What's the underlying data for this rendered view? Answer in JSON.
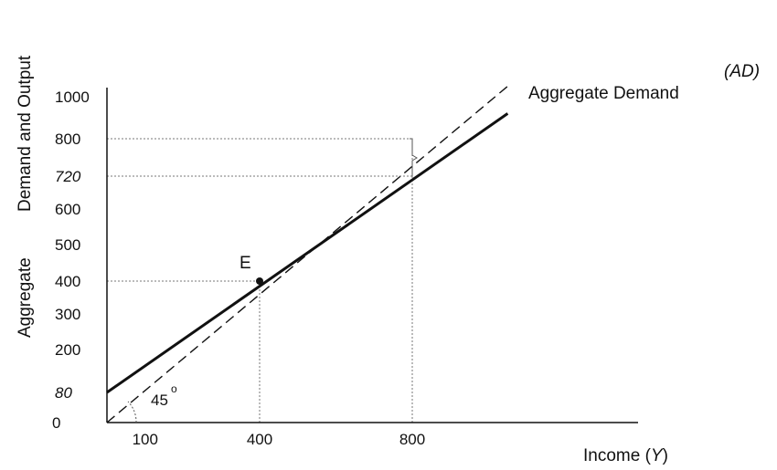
{
  "chart_data": {
    "type": "line",
    "title": "",
    "ylabel_left": "Aggregate",
    "ylabel_right": "Demand and Output",
    "xlabel_prefix": "Income (",
    "xlabel_var": "Y",
    "xlabel_suffix": ")",
    "x_ticks": [
      {
        "value": 100,
        "label": "100"
      },
      {
        "value": 400,
        "label": "400"
      },
      {
        "value": 800,
        "label": "800"
      }
    ],
    "y_ticks": [
      {
        "value": 0,
        "label": "0",
        "italic": false
      },
      {
        "value": 80,
        "label": "80",
        "italic": true
      },
      {
        "value": 200,
        "label": "200",
        "italic": false
      },
      {
        "value": 300,
        "label": "300",
        "italic": false
      },
      {
        "value": 400,
        "label": "400",
        "italic": false
      },
      {
        "value": 500,
        "label": "500",
        "italic": false
      },
      {
        "value": 600,
        "label": "600",
        "italic": false
      },
      {
        "value": 720,
        "label": "720",
        "italic": true
      },
      {
        "value": 800,
        "label": "800",
        "italic": false
      },
      {
        "value": 1000,
        "label": "1000",
        "italic": false
      }
    ],
    "series": [
      {
        "name": "Aggregate Demand",
        "style": "solid",
        "x": [
          0,
          1050
        ],
        "y": [
          80,
          920
        ]
      },
      {
        "style": "dashed",
        "x": [
          0,
          1050
        ],
        "y": [
          0,
          1050
        ]
      }
    ],
    "series_label_extra": "(AD)",
    "angle_label": "45",
    "angle_degree_mark": "o",
    "point": {
      "label": "E",
      "x": 400,
      "y": 400
    },
    "reference_lines": [
      {
        "kind": "horizontal",
        "y": 400,
        "x_end": 400
      },
      {
        "kind": "horizontal",
        "y": 720,
        "x_end": 800
      },
      {
        "kind": "horizontal",
        "y": 800,
        "x_end": 800
      },
      {
        "kind": "vertical",
        "x": 400,
        "y_end": 400
      },
      {
        "kind": "vertical",
        "x": 800,
        "y_end": 800
      }
    ],
    "colors": {
      "axis": "#111111",
      "line": "#111111",
      "reference": "#777777",
      "background": "#ffffff"
    },
    "grid": false,
    "legend": "none"
  }
}
